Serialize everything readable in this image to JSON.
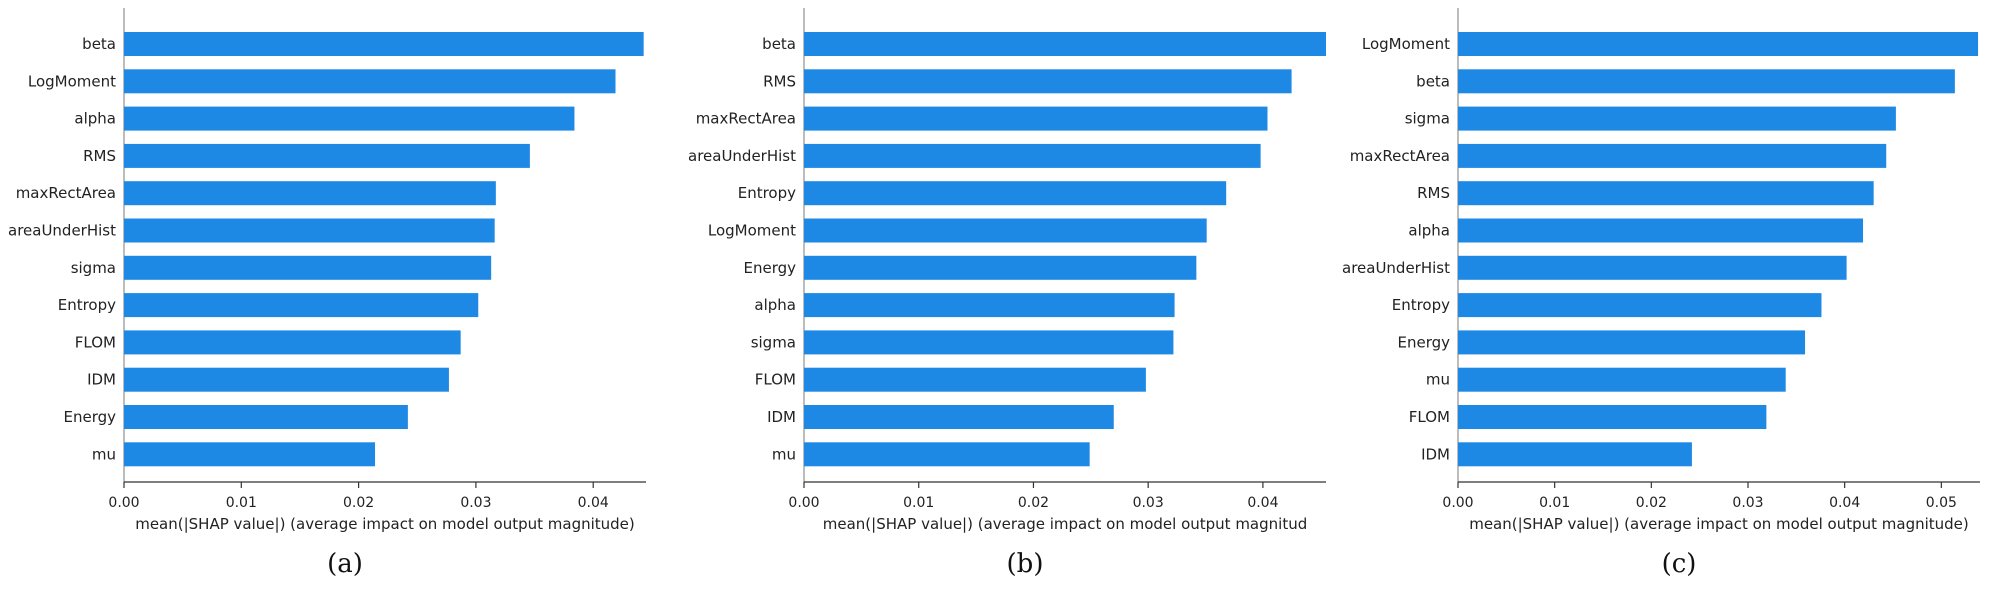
{
  "chart_data": [
    {
      "type": "bar",
      "orientation": "horizontal",
      "panel_label": "(a)",
      "categories": [
        "beta",
        "LogMoment",
        "alpha",
        "RMS",
        "maxRectArea",
        "areaUnderHist",
        "sigma",
        "Entropy",
        "FLOM",
        "IDM",
        "Energy",
        "mu"
      ],
      "values": [
        0.0443,
        0.0419,
        0.0384,
        0.0346,
        0.0317,
        0.0316,
        0.0313,
        0.0302,
        0.0287,
        0.0277,
        0.0242,
        0.0214
      ],
      "xlabel": "mean(|SHAP value|) (average impact on model output magnitude)",
      "xlim": [
        0,
        0.0445
      ],
      "xticks": [
        "0.00",
        "0.01",
        "0.02",
        "0.03",
        "0.04"
      ],
      "bar_color": "#1e88e5",
      "grid": false
    },
    {
      "type": "bar",
      "orientation": "horizontal",
      "panel_label": "(b)",
      "categories": [
        "beta",
        "RMS",
        "maxRectArea",
        "areaUnderHist",
        "Entropy",
        "LogMoment",
        "Energy",
        "alpha",
        "sigma",
        "FLOM",
        "IDM",
        "mu"
      ],
      "values": [
        0.0455,
        0.0425,
        0.0404,
        0.0398,
        0.0368,
        0.0351,
        0.0342,
        0.0323,
        0.0322,
        0.0298,
        0.027,
        0.0249
      ],
      "xlabel": "mean(|SHAP value|) (average impact on model output magnitud",
      "xlim": [
        0,
        0.0455
      ],
      "xticks": [
        "0.00",
        "0.01",
        "0.02",
        "0.03",
        "0.04"
      ],
      "bar_color": "#1e88e5",
      "grid": false
    },
    {
      "type": "bar",
      "orientation": "horizontal",
      "panel_label": "(c)",
      "categories": [
        "LogMoment",
        "beta",
        "sigma",
        "maxRectArea",
        "RMS",
        "alpha",
        "areaUnderHist",
        "Entropy",
        "Energy",
        "mu",
        "FLOM",
        "IDM"
      ],
      "values": [
        0.0538,
        0.0514,
        0.0453,
        0.0443,
        0.043,
        0.0419,
        0.0402,
        0.0376,
        0.0359,
        0.0339,
        0.0319,
        0.0242
      ],
      "xlabel": "mean(|SHAP value|) (average impact on model output magnitude)",
      "xlim": [
        0,
        0.054
      ],
      "xticks": [
        "0.00",
        "0.01",
        "0.02",
        "0.03",
        "0.04",
        "0.05"
      ],
      "bar_color": "#1e88e5",
      "grid": false
    }
  ]
}
